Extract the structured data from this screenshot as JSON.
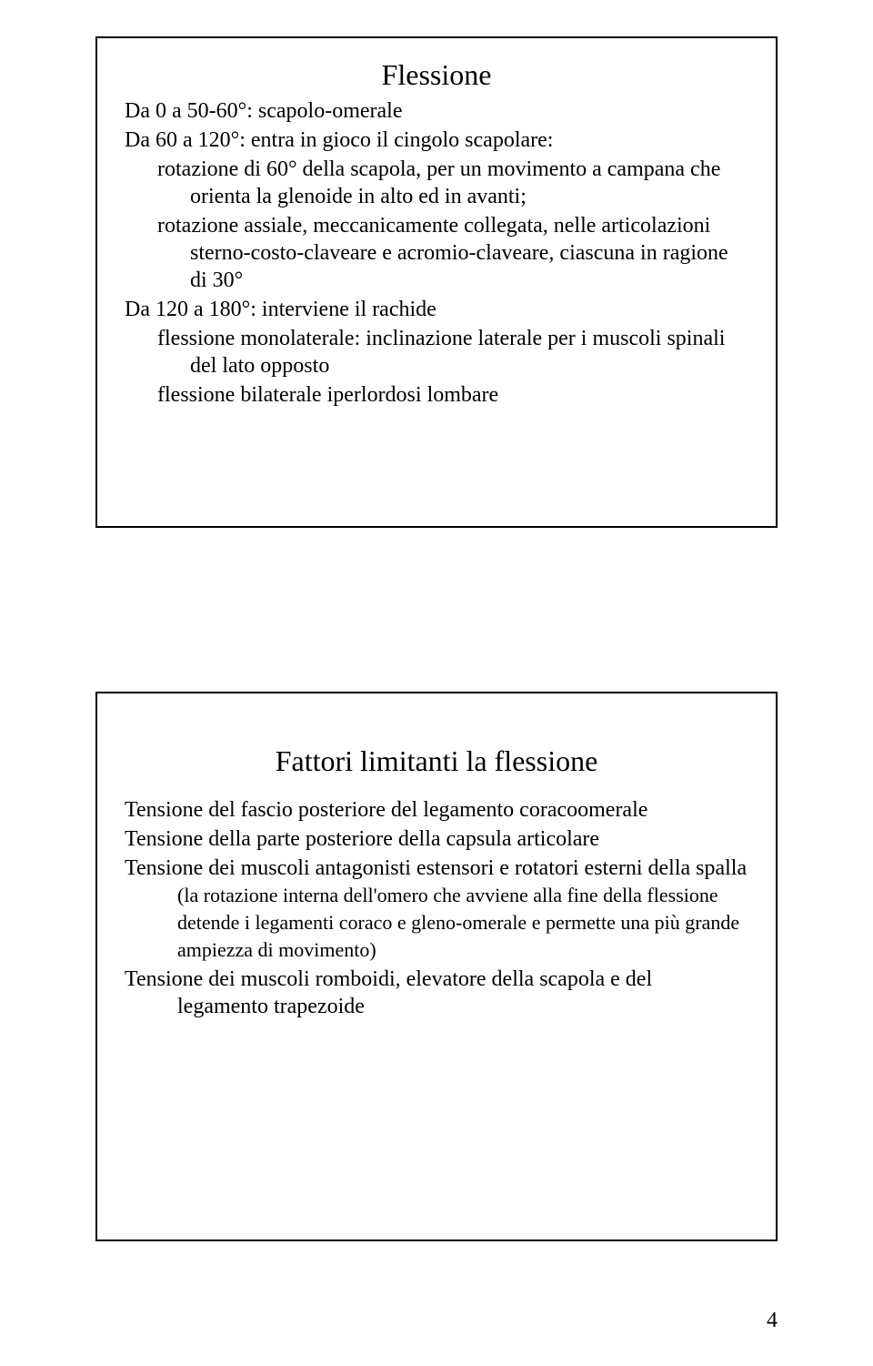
{
  "slide1": {
    "title": "Flessione",
    "p1": "Da 0 a 50-60°: scapolo-omerale",
    "p2": "Da 60 a 120°: entra in gioco il cingolo scapolare:",
    "p2a": "rotazione di 60° della scapola, per un movimento a campana che orienta la glenoide in alto ed in avanti;",
    "p2b": "rotazione assiale, meccanicamente collegata, nelle articolazioni sterno-costo-claveare e acromio-claveare, ciascuna in ragione di 30°",
    "p3": "Da 120 a 180°: interviene il rachide",
    "p3a": "flessione monolaterale: inclinazione laterale per i muscoli spinali del lato opposto",
    "p3b": "flessione bilaterale iperlordosi lombare"
  },
  "slide2": {
    "title": "Fattori limitanti la flessione",
    "i1": "Tensione del fascio posteriore del legamento coracoomerale",
    "i2": "Tensione della parte posteriore della capsula articolare",
    "i3a": "Tensione dei muscoli antagonisti estensori e rotatori esterni della spalla ",
    "i3b": "(la rotazione interna dell'omero che avviene alla fine della flessione detende i legamenti coraco e gleno-omerale e permette una più grande ampiezza di movimento)",
    "i4": "Tensione dei muscoli romboidi, elevatore della scapola e del legamento trapezoide"
  },
  "page_number": "4"
}
